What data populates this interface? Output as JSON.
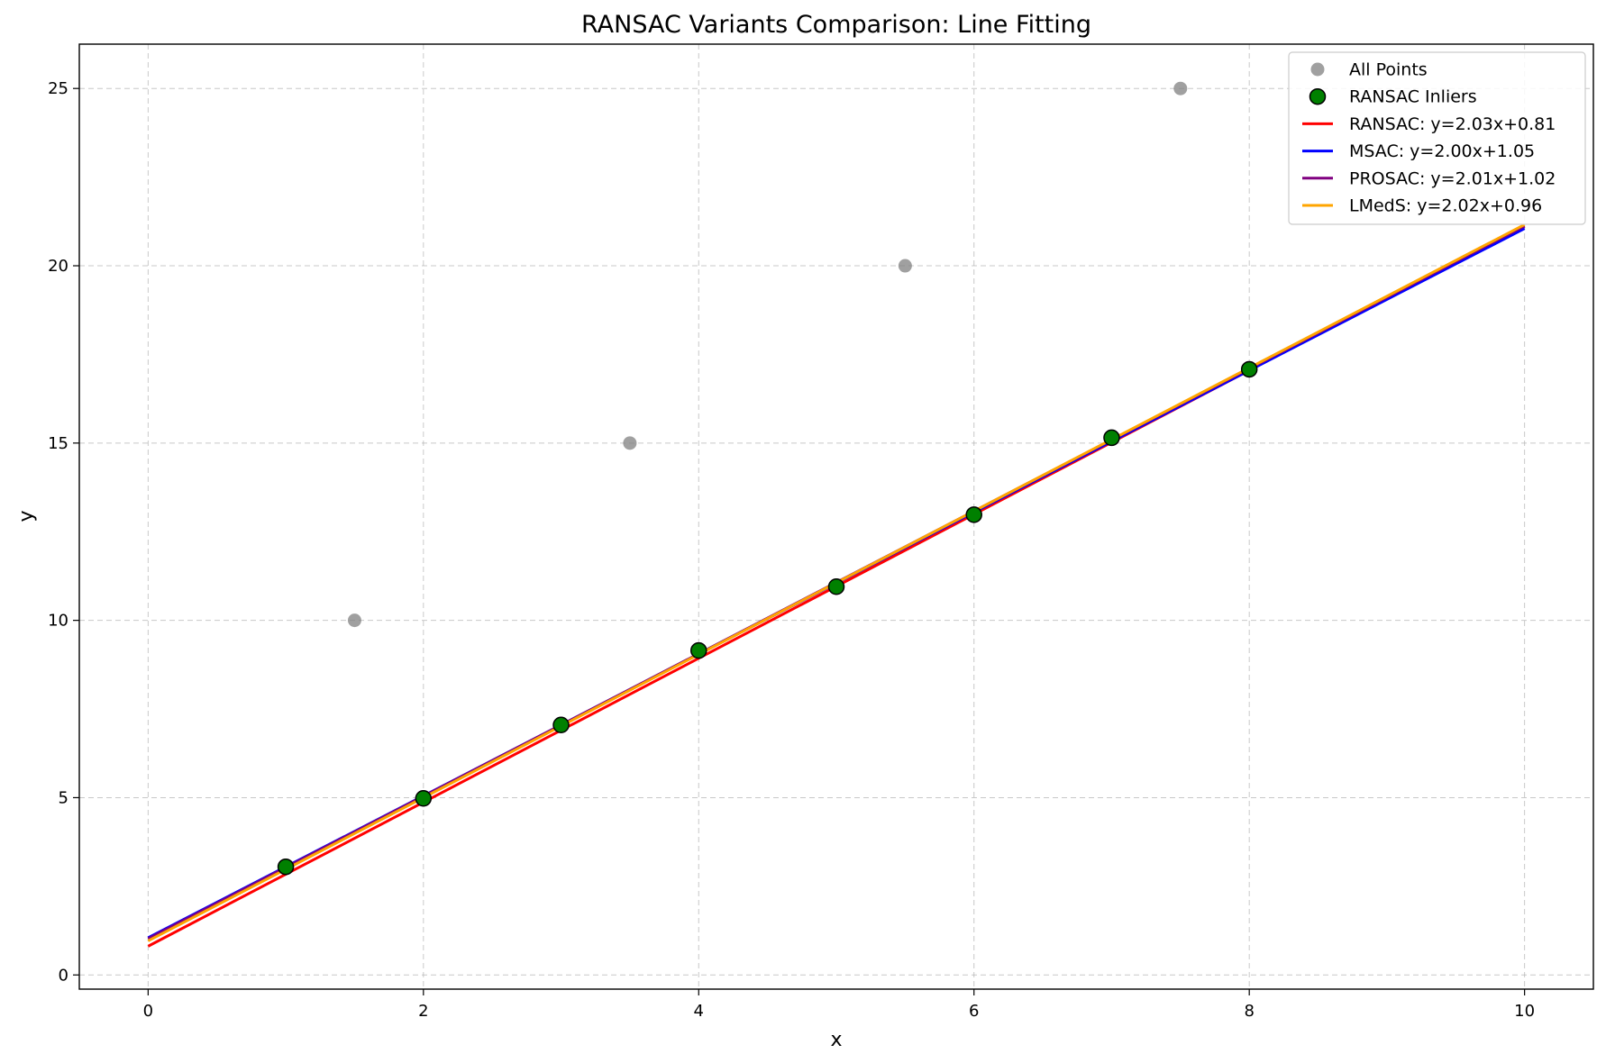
{
  "chart_data": {
    "type": "scatter",
    "title": "RANSAC Variants Comparison: Line Fitting",
    "xlabel": "x",
    "ylabel": "y",
    "xlim": [
      -0.5,
      10.5
    ],
    "ylim": [
      -0.4,
      26.25
    ],
    "xticks": [
      0,
      2,
      4,
      6,
      8,
      10
    ],
    "yticks": [
      0,
      5,
      10,
      15,
      20,
      25
    ],
    "grid": true,
    "legend_position": "top-right",
    "scatter_series": [
      {
        "name": "All Points",
        "color": "#808080",
        "points": [
          {
            "x": 1.5,
            "y": 10
          },
          {
            "x": 3.5,
            "y": 15
          },
          {
            "x": 5.5,
            "y": 20
          },
          {
            "x": 7.5,
            "y": 25
          },
          {
            "x": 1,
            "y": 3.05
          },
          {
            "x": 2,
            "y": 4.98
          },
          {
            "x": 3,
            "y": 7.05
          },
          {
            "x": 4,
            "y": 9.15
          },
          {
            "x": 5,
            "y": 10.95
          },
          {
            "x": 6,
            "y": 12.98
          },
          {
            "x": 7,
            "y": 15.15
          },
          {
            "x": 8,
            "y": 17.08
          }
        ]
      },
      {
        "name": "RANSAC Inliers",
        "color": "#008000",
        "edge_color": "#000000",
        "points": [
          {
            "x": 1,
            "y": 3.05
          },
          {
            "x": 2,
            "y": 4.98
          },
          {
            "x": 3,
            "y": 7.05
          },
          {
            "x": 4,
            "y": 9.15
          },
          {
            "x": 5,
            "y": 10.95
          },
          {
            "x": 6,
            "y": 12.98
          },
          {
            "x": 7,
            "y": 15.15
          },
          {
            "x": 8,
            "y": 17.08
          }
        ]
      }
    ],
    "line_series": [
      {
        "name": "RANSAC: y=2.03x+0.81",
        "color": "#ff0000",
        "slope": 2.03,
        "intercept": 0.81,
        "x_range": [
          0,
          10
        ]
      },
      {
        "name": "MSAC: y=2.00x+1.05",
        "color": "#0000ff",
        "slope": 2.0,
        "intercept": 1.05,
        "x_range": [
          0,
          10
        ]
      },
      {
        "name": "PROSAC: y=2.01x+1.02",
        "color": "#800080",
        "slope": 2.01,
        "intercept": 1.02,
        "x_range": [
          0,
          10
        ]
      },
      {
        "name": "LMedS: y=2.02x+0.96",
        "color": "#ffa500",
        "slope": 2.02,
        "intercept": 0.96,
        "x_range": [
          0,
          10
        ]
      }
    ]
  }
}
